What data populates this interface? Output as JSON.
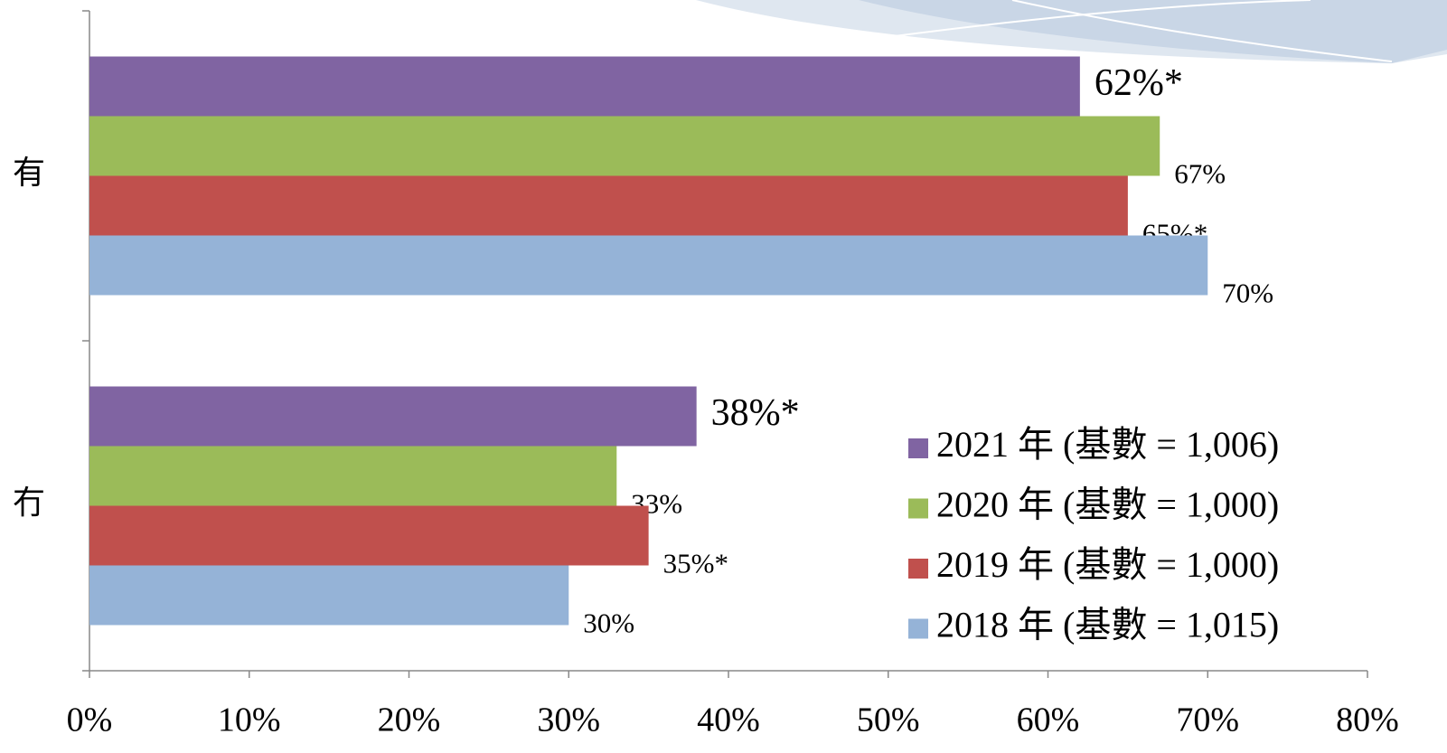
{
  "chart_data": {
    "type": "hbar",
    "categories": [
      "有",
      "冇"
    ],
    "series": [
      {
        "name": "2021 年 (基數 = 1,006)",
        "color": "#8064a2",
        "label_color": "#ff0000",
        "values": [
          62,
          38
        ],
        "value_labels": [
          "62%*",
          "38%*"
        ]
      },
      {
        "name": "2020 年 (基數 = 1,000)",
        "color": "#9bbb59",
        "label_color": "#000000",
        "values": [
          67,
          33
        ],
        "value_labels": [
          "67%",
          "33%"
        ]
      },
      {
        "name": "2019 年 (基數 = 1,000)",
        "color": "#c0504d",
        "label_color": "#000000",
        "values": [
          65,
          35
        ],
        "value_labels": [
          "65%*",
          "35%*"
        ]
      },
      {
        "name": "2018 年 (基數 = 1,015)",
        "color": "#95b3d7",
        "label_color": "#000000",
        "values": [
          70,
          30
        ],
        "value_labels": [
          "70%",
          "30%"
        ]
      }
    ],
    "xlim": [
      0,
      80
    ],
    "xticks": [
      {
        "value": 0,
        "label": "0%"
      },
      {
        "value": 10,
        "label": "10%"
      },
      {
        "value": 20,
        "label": "20%"
      },
      {
        "value": 30,
        "label": "30%"
      },
      {
        "value": 40,
        "label": "40%"
      },
      {
        "value": 50,
        "label": "50%"
      },
      {
        "value": 60,
        "label": "60%"
      },
      {
        "value": 70,
        "label": "70%"
      },
      {
        "value": 80,
        "label": "80%"
      }
    ],
    "legend": "lower-right"
  }
}
